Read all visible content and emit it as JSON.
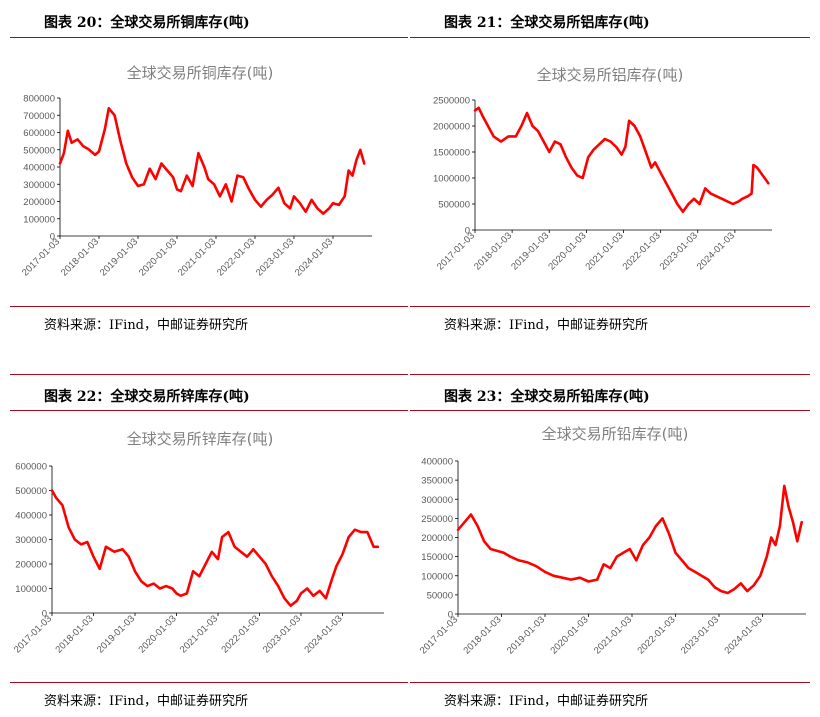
{
  "source_text": "资料来源：IFind，中邮证券研究所",
  "colors": {
    "rule": "#a40f1b",
    "series": "#ff0000",
    "title_gray": "#7f7f7f"
  },
  "panels": [
    {
      "title": "图表 20：全球交易所铜库存(吨)"
    },
    {
      "title": "图表 21：全球交易所铝库存(吨)"
    },
    {
      "title": "图表 22：全球交易所锌库存(吨)"
    },
    {
      "title": "图表 23：全球交易所铅库存(吨)"
    }
  ],
  "chart_data": [
    {
      "type": "line",
      "title": "全球交易所铜库存(吨)",
      "series_color": "#ff0000",
      "ylim": [
        0,
        800000
      ],
      "yticks": [
        "0",
        "100000",
        "200000",
        "300000",
        "400000",
        "500000",
        "600000",
        "700000",
        "800000"
      ],
      "xlim": [
        2017.0,
        2025.0
      ],
      "xticks": [
        "2017-01-03",
        "2018-01-03",
        "2019-01-03",
        "2020-01-03",
        "2021-01-03",
        "2022-01-03",
        "2023-01-03",
        "2024-01-03"
      ],
      "x": [
        2017.0,
        2017.1,
        2017.2,
        2017.3,
        2017.45,
        2017.6,
        2017.75,
        2017.9,
        2018.0,
        2018.15,
        2018.25,
        2018.4,
        2018.55,
        2018.7,
        2018.85,
        2019.0,
        2019.15,
        2019.3,
        2019.45,
        2019.6,
        2019.75,
        2019.9,
        2020.0,
        2020.1,
        2020.25,
        2020.4,
        2020.55,
        2020.7,
        2020.8,
        2020.95,
        2021.1,
        2021.25,
        2021.4,
        2021.55,
        2021.7,
        2021.85,
        2022.0,
        2022.15,
        2022.3,
        2022.45,
        2022.6,
        2022.75,
        2022.9,
        2023.0,
        2023.15,
        2023.3,
        2023.45,
        2023.6,
        2023.75,
        2023.9,
        2024.0,
        2024.15,
        2024.3,
        2024.4,
        2024.5,
        2024.6,
        2024.7,
        2024.8
      ],
      "y": [
        420000,
        480000,
        610000,
        540000,
        560000,
        520000,
        500000,
        470000,
        490000,
        620000,
        740000,
        700000,
        550000,
        420000,
        340000,
        290000,
        300000,
        390000,
        330000,
        420000,
        380000,
        340000,
        270000,
        260000,
        350000,
        290000,
        480000,
        400000,
        330000,
        300000,
        230000,
        300000,
        200000,
        350000,
        340000,
        270000,
        210000,
        170000,
        210000,
        240000,
        280000,
        190000,
        160000,
        230000,
        190000,
        140000,
        210000,
        160000,
        130000,
        160000,
        190000,
        180000,
        230000,
        380000,
        350000,
        440000,
        500000,
        420000
      ]
    },
    {
      "type": "line",
      "title": "全球交易所铝库存(吨)",
      "series_color": "#ff0000",
      "ylim": [
        0,
        2500000
      ],
      "yticks": [
        "0",
        "500000",
        "1000000",
        "1500000",
        "2000000",
        "2500000"
      ],
      "xlim": [
        2017.0,
        2025.0
      ],
      "xticks": [
        "2017-01-03",
        "2018-01-03",
        "2019-01-03",
        "2020-01-03",
        "2021-01-03",
        "2022-01-03",
        "2023-01-03",
        "2024-01-03"
      ],
      "x": [
        2017.0,
        2017.1,
        2017.2,
        2017.35,
        2017.5,
        2017.7,
        2017.9,
        2018.1,
        2018.25,
        2018.4,
        2018.55,
        2018.7,
        2018.85,
        2019.0,
        2019.15,
        2019.3,
        2019.45,
        2019.6,
        2019.75,
        2019.9,
        2020.05,
        2020.2,
        2020.35,
        2020.5,
        2020.65,
        2020.8,
        2020.95,
        2021.05,
        2021.15,
        2021.3,
        2021.45,
        2021.6,
        2021.75,
        2021.85,
        2022.0,
        2022.15,
        2022.3,
        2022.45,
        2022.6,
        2022.75,
        2022.9,
        2023.05,
        2023.2,
        2023.35,
        2023.5,
        2023.65,
        2023.8,
        2023.95,
        2024.1,
        2024.2,
        2024.35,
        2024.45,
        2024.5,
        2024.6,
        2024.75,
        2024.9
      ],
      "y": [
        2300000,
        2350000,
        2200000,
        2000000,
        1800000,
        1700000,
        1800000,
        1800000,
        2000000,
        2250000,
        2000000,
        1900000,
        1700000,
        1500000,
        1700000,
        1650000,
        1400000,
        1200000,
        1050000,
        1000000,
        1400000,
        1550000,
        1650000,
        1750000,
        1700000,
        1600000,
        1450000,
        1600000,
        2100000,
        2000000,
        1800000,
        1500000,
        1200000,
        1300000,
        1100000,
        900000,
        700000,
        500000,
        350000,
        500000,
        600000,
        500000,
        800000,
        700000,
        650000,
        600000,
        550000,
        500000,
        550000,
        600000,
        650000,
        700000,
        1250000,
        1200000,
        1050000,
        900000
      ]
    },
    {
      "type": "line",
      "title": "全球交易所锌库存(吨)",
      "series_color": "#ff0000",
      "ylim": [
        0,
        600000
      ],
      "yticks": [
        "0",
        "100000",
        "200000",
        "300000",
        "400000",
        "500000",
        "600000"
      ],
      "xlim": [
        2017.0,
        2025.0
      ],
      "xticks": [
        "2017-01-03",
        "2018-01-03",
        "2019-01-03",
        "2020-01-03",
        "2021-01-03",
        "2022-01-03",
        "2023-01-03",
        "2024-01-03"
      ],
      "x": [
        2017.0,
        2017.1,
        2017.25,
        2017.4,
        2017.55,
        2017.7,
        2017.85,
        2018.0,
        2018.15,
        2018.3,
        2018.5,
        2018.7,
        2018.85,
        2019.0,
        2019.15,
        2019.3,
        2019.45,
        2019.6,
        2019.75,
        2019.9,
        2020.0,
        2020.1,
        2020.25,
        2020.4,
        2020.55,
        2020.7,
        2020.85,
        2021.0,
        2021.1,
        2021.25,
        2021.4,
        2021.55,
        2021.7,
        2021.85,
        2022.0,
        2022.15,
        2022.3,
        2022.45,
        2022.6,
        2022.75,
        2022.9,
        2023.0,
        2023.15,
        2023.3,
        2023.45,
        2023.6,
        2023.75,
        2023.85,
        2024.0,
        2024.15,
        2024.3,
        2024.45,
        2024.6,
        2024.75,
        2024.85
      ],
      "y": [
        500000,
        470000,
        440000,
        350000,
        300000,
        280000,
        290000,
        230000,
        180000,
        270000,
        250000,
        260000,
        230000,
        170000,
        130000,
        110000,
        120000,
        100000,
        110000,
        100000,
        80000,
        70000,
        80000,
        170000,
        150000,
        200000,
        250000,
        220000,
        310000,
        330000,
        270000,
        250000,
        230000,
        260000,
        230000,
        200000,
        150000,
        110000,
        60000,
        30000,
        50000,
        80000,
        100000,
        70000,
        90000,
        60000,
        140000,
        190000,
        240000,
        310000,
        340000,
        330000,
        330000,
        270000,
        270000
      ]
    },
    {
      "type": "line",
      "title": "全球交易所铅库存(吨)",
      "series_color": "#ff0000",
      "ylim": [
        0,
        400000
      ],
      "yticks": [
        "0",
        "50000",
        "100000",
        "150000",
        "200000",
        "250000",
        "300000",
        "350000",
        "400000"
      ],
      "xlim": [
        2017.0,
        2025.0
      ],
      "xticks": [
        "2017-01-03",
        "2018-01-03",
        "2019-01-03",
        "2020-01-03",
        "2021-01-03",
        "2022-01-03",
        "2023-01-03",
        "2024-01-03"
      ],
      "x": [
        2017.0,
        2017.15,
        2017.3,
        2017.45,
        2017.6,
        2017.75,
        2017.9,
        2018.05,
        2018.2,
        2018.4,
        2018.6,
        2018.8,
        2019.0,
        2019.2,
        2019.4,
        2019.6,
        2019.8,
        2020.0,
        2020.2,
        2020.35,
        2020.5,
        2020.65,
        2020.8,
        2020.95,
        2021.1,
        2021.25,
        2021.4,
        2021.55,
        2021.7,
        2021.85,
        2022.0,
        2022.15,
        2022.3,
        2022.45,
        2022.6,
        2022.75,
        2022.9,
        2023.05,
        2023.2,
        2023.35,
        2023.5,
        2023.65,
        2023.8,
        2023.95,
        2024.1,
        2024.2,
        2024.3,
        2024.4,
        2024.5,
        2024.6,
        2024.7,
        2024.8,
        2024.9
      ],
      "y": [
        220000,
        240000,
        260000,
        230000,
        190000,
        170000,
        165000,
        160000,
        150000,
        140000,
        135000,
        125000,
        110000,
        100000,
        95000,
        90000,
        95000,
        85000,
        90000,
        130000,
        120000,
        150000,
        160000,
        170000,
        140000,
        180000,
        200000,
        230000,
        250000,
        210000,
        160000,
        140000,
        120000,
        110000,
        100000,
        90000,
        70000,
        60000,
        55000,
        65000,
        80000,
        60000,
        75000,
        100000,
        150000,
        200000,
        180000,
        230000,
        335000,
        280000,
        240000,
        190000,
        240000
      ]
    }
  ]
}
